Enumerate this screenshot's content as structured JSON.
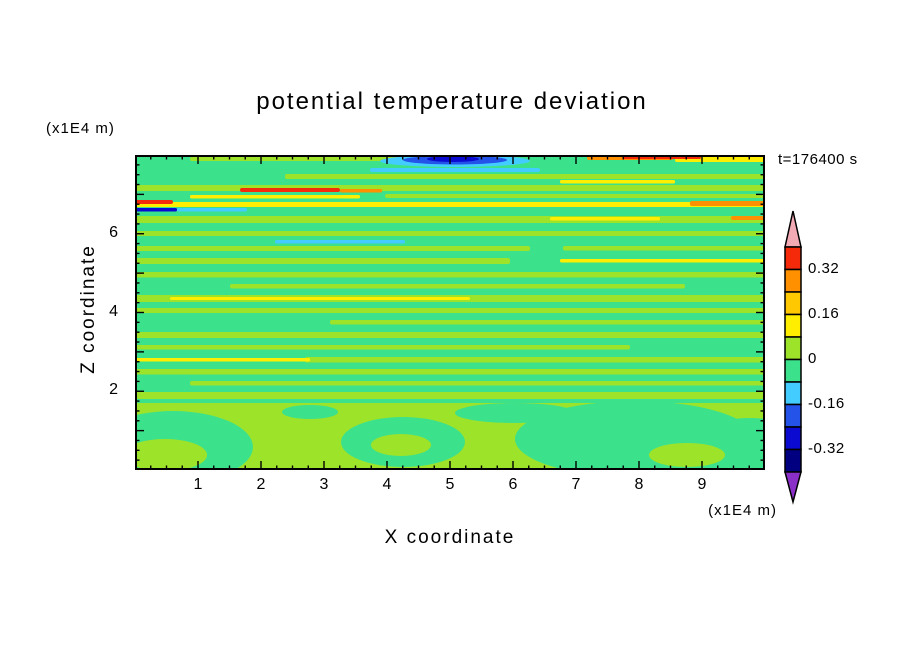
{
  "title": "potential temperature deviation",
  "annotations": {
    "time_label": "t=176400 s",
    "z_unit": "(x1E4 m)",
    "x_unit": "(x1E4 m)"
  },
  "axes": {
    "x_label": "X coordinate",
    "z_label": "Z coordinate",
    "x_ticks": [
      1,
      2,
      3,
      4,
      5,
      6,
      7,
      8,
      9
    ],
    "z_ticks": [
      2,
      4,
      6
    ],
    "x_range": [
      0,
      10
    ],
    "z_range": [
      0,
      8
    ],
    "x_minor_step": 0.25,
    "z_minor_step": 0.25
  },
  "colorbar": {
    "labels": [
      "0.32",
      "0.16",
      "0",
      "-0.16",
      "-0.32"
    ],
    "segments": [
      "#f42a0a",
      "#ff9000",
      "#ffc800",
      "#ffee00",
      "#9de32a",
      "#3ce18c",
      "#43ccff",
      "#2353e8",
      "#0a0ad0",
      "#000080"
    ],
    "top_arrow_color": "#f2aab4",
    "bottom_arrow_color": "#8b2fc9"
  },
  "chart_data": {
    "type": "heatmap",
    "title": "potential temperature deviation",
    "xlabel": "X coordinate (x1E4 m)",
    "ylabel": "Z coordinate (x1E4 m)",
    "time": "t=176400 s",
    "x_range": [
      0,
      10
    ],
    "z_range": [
      0,
      8
    ],
    "contour_levels": [
      -0.4,
      -0.32,
      -0.24,
      -0.16,
      -0.08,
      0,
      0.08,
      0.16,
      0.24,
      0.32,
      0.4
    ],
    "level_colors_low_to_high": [
      "#8b2fc9",
      "#000080",
      "#0a0ad0",
      "#2353e8",
      "#43ccff",
      "#3ce18c",
      "#9de32a",
      "#ffee00",
      "#ffc800",
      "#ff9000",
      "#f42a0a",
      "#f2aab4"
    ],
    "field_description": "horizontally layered potential temperature deviation field; alternating green (-0.08 to 0) and yellow-green (0 to 0.08) stripes, warm (yellow/orange/red) streaks near top, blue/cyan minima at upper boundary, blobby convective region near surface",
    "shapes": [
      [
        "r",
        0,
        0,
        630,
        315,
        "#3ce18c",
        0
      ],
      [
        "r",
        55,
        2,
        230,
        4,
        "#9de32a",
        2
      ],
      [
        "r",
        540,
        0,
        90,
        7,
        "#ffee00",
        2
      ],
      [
        "r",
        452,
        0,
        86,
        5,
        "#ff9000",
        2
      ],
      [
        "r",
        488,
        1,
        78,
        3,
        "#f42a0a",
        1.5
      ],
      [
        "e",
        320,
        6,
        75,
        6,
        "#43ccff"
      ],
      [
        "e",
        320,
        5,
        52,
        4.5,
        "#2353e8"
      ],
      [
        "e",
        318,
        4,
        26,
        3,
        "#0a0ad0"
      ],
      [
        "r",
        235,
        13,
        170,
        4,
        "#43ccff",
        2
      ],
      [
        "r",
        150,
        19,
        480,
        5,
        "#9de32a",
        2
      ],
      [
        "r",
        425,
        25,
        115,
        3.5,
        "#ffee00",
        1.5
      ],
      [
        "r",
        0,
        30,
        630,
        6,
        "#9de32a",
        2
      ],
      [
        "r",
        105,
        33,
        100,
        4,
        "#f42a0a",
        2
      ],
      [
        "r",
        205,
        34,
        42,
        3.5,
        "#ff9000",
        1.5
      ],
      [
        "r",
        55,
        40,
        170,
        3.5,
        "#ffee00",
        1.5
      ],
      [
        "r",
        250,
        39,
        380,
        4,
        "#9de32a",
        2
      ],
      [
        "r",
        0,
        47,
        630,
        5,
        "#ffee00",
        2
      ],
      [
        "r",
        555,
        46,
        75,
        5,
        "#ff9000",
        2
      ],
      [
        "r",
        0,
        45,
        38,
        4,
        "#f42a0a",
        2
      ],
      [
        "r",
        0,
        53,
        42,
        3.5,
        "#0a0ad0",
        1.5
      ],
      [
        "r",
        42,
        53,
        70,
        3.5,
        "#43ccff",
        1.5
      ],
      [
        "r",
        0,
        61,
        630,
        7,
        "#9de32a",
        2
      ],
      [
        "r",
        415,
        62,
        110,
        3.5,
        "#ffee00",
        1.5
      ],
      [
        "r",
        596,
        61,
        34,
        4,
        "#ff9000",
        2
      ],
      [
        "r",
        0,
        76,
        630,
        5,
        "#9de32a",
        2
      ],
      [
        "r",
        140,
        85,
        130,
        3.5,
        "#43ccff",
        1.5
      ],
      [
        "r",
        0,
        91,
        395,
        5,
        "#9de32a",
        2
      ],
      [
        "r",
        428,
        91,
        202,
        4.5,
        "#9de32a",
        2
      ],
      [
        "r",
        0,
        103,
        375,
        6,
        "#9de32a",
        2
      ],
      [
        "r",
        425,
        104,
        205,
        3.5,
        "#ffee00",
        1.5
      ],
      [
        "r",
        0,
        117,
        630,
        5.5,
        "#9de32a",
        2
      ],
      [
        "r",
        95,
        129,
        455,
        4.5,
        "#9de32a",
        2
      ],
      [
        "r",
        0,
        140,
        630,
        7,
        "#9de32a",
        2
      ],
      [
        "r",
        35,
        142,
        300,
        3,
        "#ffee00",
        1.5
      ],
      [
        "r",
        0,
        153,
        630,
        5,
        "#9de32a",
        2
      ],
      [
        "r",
        195,
        165,
        435,
        4.5,
        "#9de32a",
        2
      ],
      [
        "r",
        0,
        177,
        630,
        6,
        "#9de32a",
        2
      ],
      [
        "r",
        0,
        190,
        495,
        4.5,
        "#9de32a",
        2
      ],
      [
        "r",
        170,
        202,
        460,
        5.5,
        "#9de32a",
        2
      ],
      [
        "r",
        0,
        203,
        175,
        3.5,
        "#ffee00",
        1.5
      ],
      [
        "r",
        0,
        214,
        630,
        5.5,
        "#9de32a",
        2
      ],
      [
        "r",
        55,
        226,
        575,
        4.5,
        "#9de32a",
        2
      ],
      [
        "r",
        0,
        237,
        630,
        7,
        "#9de32a",
        2
      ],
      [
        "r",
        0,
        248,
        630,
        5,
        "#9de32a",
        2
      ],
      [
        "r",
        0,
        253,
        630,
        62,
        "#9de32a",
        0
      ],
      [
        "e",
        38,
        292,
        80,
        36,
        "#3ce18c"
      ],
      [
        "e",
        30,
        300,
        42,
        16,
        "#9de32a"
      ],
      [
        "e",
        268,
        287,
        62,
        25,
        "#3ce18c"
      ],
      [
        "e",
        266,
        290,
        30,
        11,
        "#9de32a"
      ],
      [
        "e",
        500,
        284,
        120,
        38,
        "#3ce18c"
      ],
      [
        "e",
        615,
        295,
        65,
        32,
        "#3ce18c"
      ],
      [
        "e",
        552,
        300,
        38,
        12,
        "#9de32a"
      ],
      [
        "e",
        380,
        258,
        60,
        10,
        "#3ce18c"
      ],
      [
        "e",
        175,
        257,
        28,
        7,
        "#3ce18c"
      ]
    ]
  }
}
